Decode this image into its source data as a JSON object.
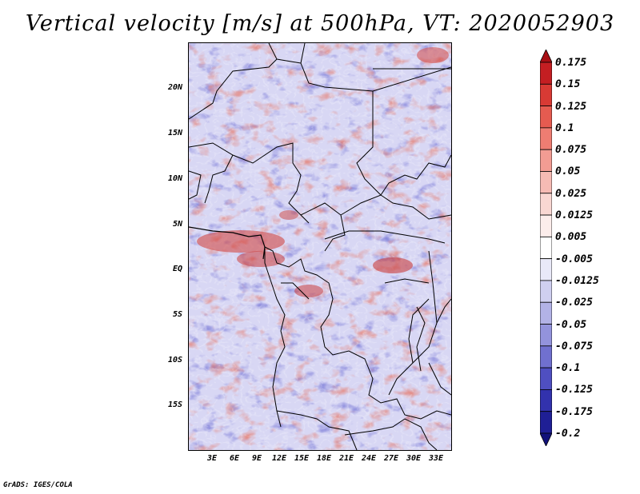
{
  "title": "Vertical velocity [m/s] at 500hPa, VT: 2020052903",
  "credit": "GrADS: IGES/COLA",
  "lat_labels": [
    "20N",
    "15N",
    "10N",
    "5N",
    "EQ",
    "5S",
    "10S",
    "15S"
  ],
  "lon_labels": [
    "3E",
    "6E",
    "9E",
    "12E",
    "15E",
    "18E",
    "21E",
    "24E",
    "27E",
    "30E",
    "33E"
  ],
  "colorbar": {
    "labels": [
      "0.175",
      "0.15",
      "0.125",
      "0.1",
      "0.075",
      "0.05",
      "0.025",
      "0.0125",
      "0.005",
      "-0.005",
      "-0.0125",
      "-0.025",
      "-0.05",
      "-0.075",
      "-0.1",
      "-0.125",
      "-0.175",
      "-0.2"
    ],
    "colors": [
      "#a80f14",
      "#c41e22",
      "#d83a34",
      "#e55b50",
      "#ee7d72",
      "#f29c93",
      "#f6bbb4",
      "#f9d7d2",
      "#fcedeb",
      "#ffffff",
      "#e9e9f8",
      "#cfcff0",
      "#b2b2e6",
      "#9393dc",
      "#7070cf",
      "#4f4fc1",
      "#3232ad",
      "#1f1f95",
      "#12127a"
    ]
  },
  "colors": {
    "positive": "#e06c63",
    "negative": "#7c7cd6",
    "land": "#000000"
  }
}
